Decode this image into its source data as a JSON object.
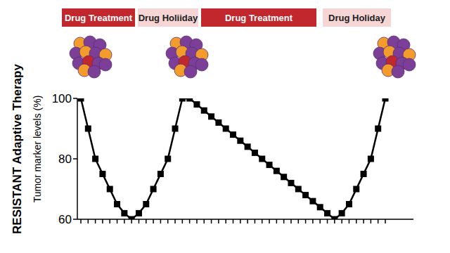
{
  "chart_data": {
    "type": "line",
    "title": "RESISTANT Adaptive Therapy",
    "y_label": "Tumor marker levels (%)",
    "annotations": [
      {
        "text": "Drug Treatment",
        "color": "#c1272d"
      },
      {
        "text": "Drug Holiiday",
        "color": "#f6d5d5"
      },
      {
        "text": "Drug Treatment",
        "color": "#c1272d"
      },
      {
        "text": "Drug Holiday",
        "color": "#f6d5d5"
      }
    ],
    "categories": [
      null,
      null,
      null,
      null,
      null,
      null,
      null,
      null,
      null,
      null,
      null,
      null,
      null,
      null,
      null,
      null,
      null,
      null,
      null,
      null,
      null,
      null,
      null,
      null,
      null,
      null,
      null,
      null,
      null,
      null,
      null,
      null,
      null,
      null,
      null,
      null,
      null,
      null,
      null,
      null,
      null,
      null,
      null
    ],
    "values": [
      100,
      90,
      80,
      75,
      70,
      65,
      62,
      60,
      62,
      65,
      70,
      75,
      80,
      90,
      100,
      100,
      98,
      96,
      94,
      92,
      90,
      88,
      86,
      84,
      82,
      80,
      78,
      76,
      74,
      72,
      70,
      68,
      66,
      64,
      62,
      60,
      62,
      65,
      70,
      75,
      80,
      90,
      100
    ],
    "color": "#000000",
    "marker": "square",
    "ylim": [
      60,
      100
    ],
    "yticks": [
      60,
      80,
      100
    ],
    "tick_labels": "y",
    "grid": false
  }
}
